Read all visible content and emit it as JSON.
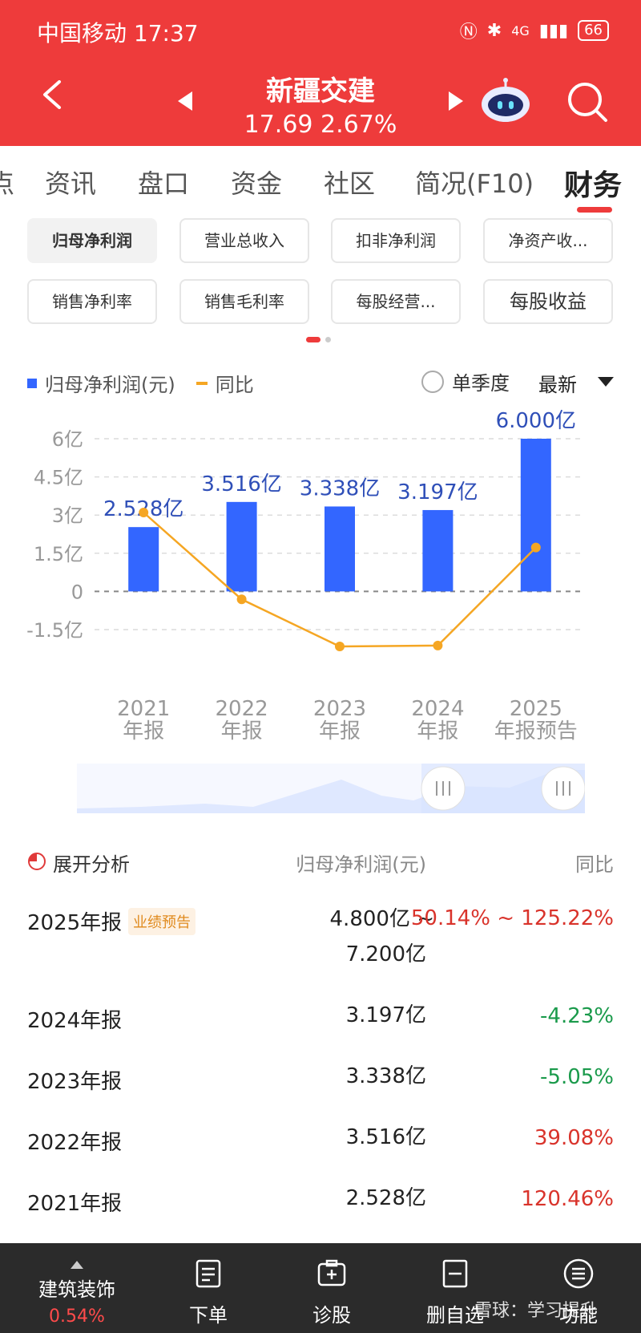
{
  "status_bar": {
    "carrier_time": "中国移动 17:37",
    "signal": "4G",
    "battery": "66"
  },
  "header": {
    "title": "新疆交建",
    "price_change": "17.69 2.67%"
  },
  "tabs": {
    "items": [
      "资讯",
      "盘口",
      "资金",
      "社区",
      "简况(F10)",
      "财务"
    ],
    "active": "财务"
  },
  "metrics": [
    "归母净利润",
    "营业总收入",
    "扣非净利润",
    "净资产收...",
    "销售净利率",
    "销售毛利率",
    "每股经营...",
    "每股收益"
  ],
  "legend": {
    "series1": "归母净利润(元)",
    "series2": "同比",
    "season": "单季度",
    "latest": "最新"
  },
  "chart_data": {
    "type": "bar",
    "categories": [
      "2021年报",
      "2022年报",
      "2023年报",
      "2024年报",
      "2025年报预告"
    ],
    "x_labels_line1": [
      "2021",
      "2022",
      "2023",
      "2024",
      "2025"
    ],
    "x_labels_line2": [
      "年报",
      "年报",
      "年报",
      "年报",
      "年报预告"
    ],
    "series": [
      {
        "name": "归母净利润(元)",
        "values": [
          2.528,
          3.516,
          3.338,
          3.197,
          6.0
        ],
        "unit": "亿",
        "color": "#3366ff"
      },
      {
        "name": "同比",
        "values": [
          120.46,
          39.08,
          -5.05,
          -4.23,
          87.68
        ],
        "unit": "%",
        "color": "#f5a623"
      }
    ],
    "bar_labels": [
      "2.528亿",
      "3.516亿",
      "3.338亿",
      "3.197亿",
      "6.000亿"
    ],
    "y_ticks": [
      "6亿",
      "4.5亿",
      "3亿",
      "1.5亿",
      "0",
      "-1.5亿"
    ],
    "y_tick_values": [
      6,
      4.5,
      3,
      1.5,
      0,
      -1.5
    ],
    "ylim": [
      -1.5,
      6
    ]
  },
  "table": {
    "header": {
      "name": "展开分析",
      "value": "归母净利润(元)",
      "yoy": "同比"
    },
    "rows": [
      {
        "period": "2025年报",
        "badge": "业绩预告",
        "value_line1": "4.800亿 ~",
        "value_line2": "7.200亿",
        "yoy": "50.14% ~ 125.22%"
      },
      {
        "period": "2024年报",
        "value": "3.197亿",
        "yoy": "-4.23%"
      },
      {
        "period": "2023年报",
        "value": "3.338亿",
        "yoy": "-5.05%"
      },
      {
        "period": "2022年报",
        "value": "3.516亿",
        "yoy": "39.08%"
      },
      {
        "period": "2021年报",
        "value": "2.528亿",
        "yoy": "120.46%"
      }
    ]
  },
  "bottom": {
    "sector_name": "建筑装饰",
    "sector_pct": "0.54%",
    "buttons": [
      "下单",
      "诊股",
      "删自选",
      "功能"
    ],
    "watermark": "雪球：学习提升"
  }
}
